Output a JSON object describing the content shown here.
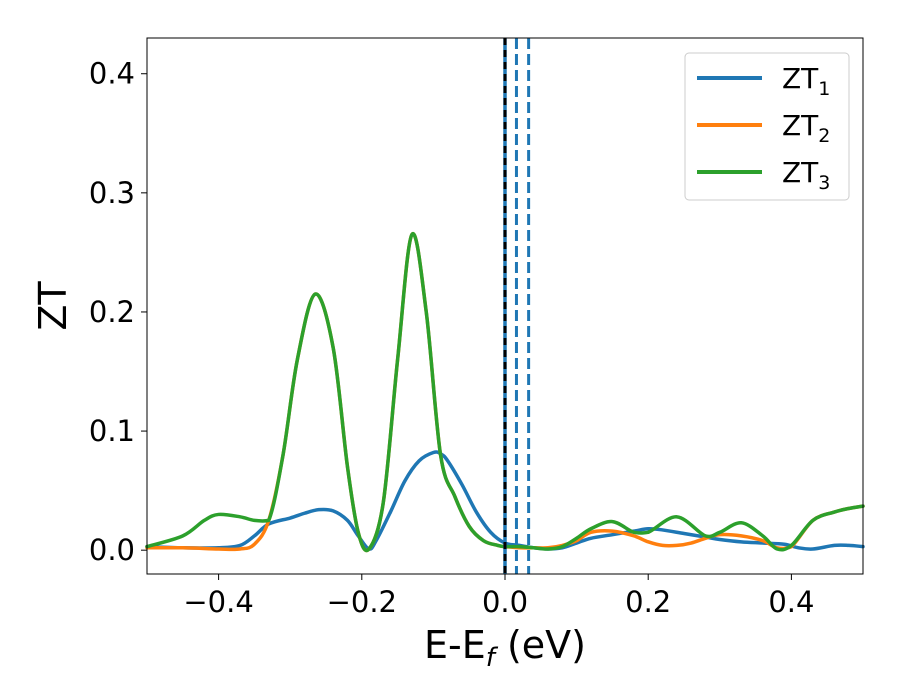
{
  "chart_data": {
    "type": "line",
    "xlabel": {
      "main": "E-E",
      "sub": "f",
      "unit": " (eV)"
    },
    "ylabel": "ZT",
    "xlim": [
      -0.5,
      0.5
    ],
    "ylim": [
      -0.02,
      0.43
    ],
    "x_ticks": [
      -0.4,
      -0.2,
      0.0,
      0.2,
      0.4
    ],
    "x_tick_labels": [
      "−0.4",
      "−0.2",
      "0.0",
      "0.2",
      "0.4"
    ],
    "y_ticks": [
      0.0,
      0.1,
      0.2,
      0.3,
      0.4
    ],
    "y_tick_labels": [
      "0.0",
      "0.1",
      "0.2",
      "0.3",
      "0.4"
    ],
    "grid": false,
    "legend_position": "top-right",
    "vertical_lines": [
      {
        "x": 0.0,
        "style": "solid",
        "color": "#1f77b4"
      },
      {
        "x": 0.0,
        "style": "dashed",
        "color": "#000000"
      },
      {
        "x": 0.016,
        "style": "dashed",
        "color": "#1f77b4"
      },
      {
        "x": 0.033,
        "style": "dashed",
        "color": "#1f77b4"
      }
    ],
    "series": [
      {
        "name": "ZT1",
        "label_main": "ZT",
        "label_sub": "1",
        "color": "#1f77b4",
        "x": [
          -0.5,
          -0.45,
          -0.4,
          -0.37,
          -0.35,
          -0.33,
          -0.3,
          -0.28,
          -0.26,
          -0.24,
          -0.22,
          -0.205,
          -0.19,
          -0.18,
          -0.16,
          -0.14,
          -0.12,
          -0.1,
          -0.09,
          -0.08,
          -0.06,
          -0.04,
          -0.02,
          0.0,
          0.02,
          0.04,
          0.06,
          0.08,
          0.1,
          0.12,
          0.15,
          0.18,
          0.2,
          0.22,
          0.25,
          0.28,
          0.3,
          0.33,
          0.36,
          0.39,
          0.41,
          0.43,
          0.46,
          0.48,
          0.5
        ],
        "y": [
          0.003,
          0.002,
          0.002,
          0.004,
          0.012,
          0.022,
          0.027,
          0.031,
          0.034,
          0.033,
          0.025,
          0.012,
          0.001,
          0.008,
          0.032,
          0.058,
          0.075,
          0.082,
          0.081,
          0.075,
          0.055,
          0.032,
          0.015,
          0.006,
          0.004,
          0.002,
          0.001,
          0.002,
          0.006,
          0.01,
          0.013,
          0.016,
          0.018,
          0.017,
          0.014,
          0.011,
          0.009,
          0.007,
          0.006,
          0.005,
          0.002,
          0.001,
          0.004,
          0.004,
          0.003
        ]
      },
      {
        "name": "ZT2",
        "label_main": "ZT",
        "label_sub": "2",
        "color": "#ff7f0e",
        "x": [
          -0.5,
          -0.45,
          -0.4,
          -0.37,
          -0.35,
          -0.33,
          -0.31,
          -0.29,
          -0.265,
          -0.24,
          -0.22,
          -0.205,
          -0.19,
          -0.17,
          -0.15,
          -0.13,
          -0.11,
          -0.09,
          -0.07,
          -0.05,
          -0.03,
          -0.01,
          0.0,
          0.02,
          0.04,
          0.06,
          0.08,
          0.1,
          0.12,
          0.15,
          0.18,
          0.2,
          0.22,
          0.24,
          0.26,
          0.28,
          0.3,
          0.33,
          0.36,
          0.38,
          0.4,
          0.43,
          0.46,
          0.48,
          0.5
        ],
        "y": [
          0.002,
          0.002,
          0.001,
          0.001,
          0.005,
          0.025,
          0.08,
          0.16,
          0.215,
          0.17,
          0.07,
          0.015,
          0.001,
          0.04,
          0.16,
          0.265,
          0.2,
          0.08,
          0.045,
          0.02,
          0.008,
          0.004,
          0.003,
          0.002,
          0.002,
          0.002,
          0.004,
          0.008,
          0.015,
          0.016,
          0.012,
          0.007,
          0.004,
          0.004,
          0.006,
          0.01,
          0.013,
          0.012,
          0.008,
          0.002,
          0.003,
          0.025,
          0.032,
          0.035,
          0.037
        ]
      },
      {
        "name": "ZT3",
        "label_main": "ZT",
        "label_sub": "3",
        "color": "#2ca02c",
        "x": [
          -0.5,
          -0.45,
          -0.42,
          -0.4,
          -0.37,
          -0.35,
          -0.33,
          -0.31,
          -0.29,
          -0.265,
          -0.24,
          -0.22,
          -0.205,
          -0.19,
          -0.17,
          -0.15,
          -0.13,
          -0.11,
          -0.09,
          -0.07,
          -0.05,
          -0.03,
          -0.01,
          0.0,
          0.02,
          0.04,
          0.06,
          0.08,
          0.1,
          0.12,
          0.15,
          0.18,
          0.2,
          0.24,
          0.28,
          0.3,
          0.33,
          0.36,
          0.38,
          0.4,
          0.43,
          0.46,
          0.48,
          0.5
        ],
        "y": [
          0.003,
          0.012,
          0.025,
          0.03,
          0.028,
          0.025,
          0.025,
          0.08,
          0.16,
          0.215,
          0.17,
          0.07,
          0.015,
          0.001,
          0.04,
          0.16,
          0.265,
          0.2,
          0.08,
          0.045,
          0.02,
          0.008,
          0.004,
          0.003,
          0.003,
          0.002,
          0.001,
          0.003,
          0.01,
          0.018,
          0.024,
          0.015,
          0.015,
          0.028,
          0.012,
          0.015,
          0.023,
          0.012,
          0.001,
          0.004,
          0.025,
          0.032,
          0.035,
          0.037
        ]
      }
    ]
  }
}
